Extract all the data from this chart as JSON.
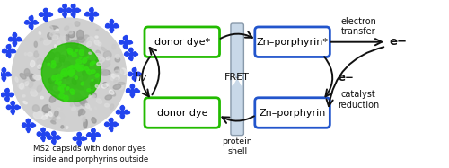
{
  "bg_color": "#ffffff",
  "green_box_color": "#22bb00",
  "blue_box_color": "#2255cc",
  "arrow_color": "#111111",
  "text_color": "#111111",
  "donor_dye_star": "donor dye*",
  "donor_dye": "donor dye",
  "zn_star": "Zn–porphyrin*",
  "zn": "Zn–porphyrin",
  "fret_label": "FRET",
  "hv_label": "hv",
  "protein_shell_label": "protein\nshell",
  "electron_transfer": "electron\ntransfer",
  "catalyst_reduction": "catalyst\nreduction",
  "e_minus_arrow": "e−",
  "e_minus_side": "e−",
  "caption": "MS2 capsids with donor dyes\ninside and porphyrins outside",
  "figsize": [
    5.0,
    1.87
  ],
  "dpi": 100
}
